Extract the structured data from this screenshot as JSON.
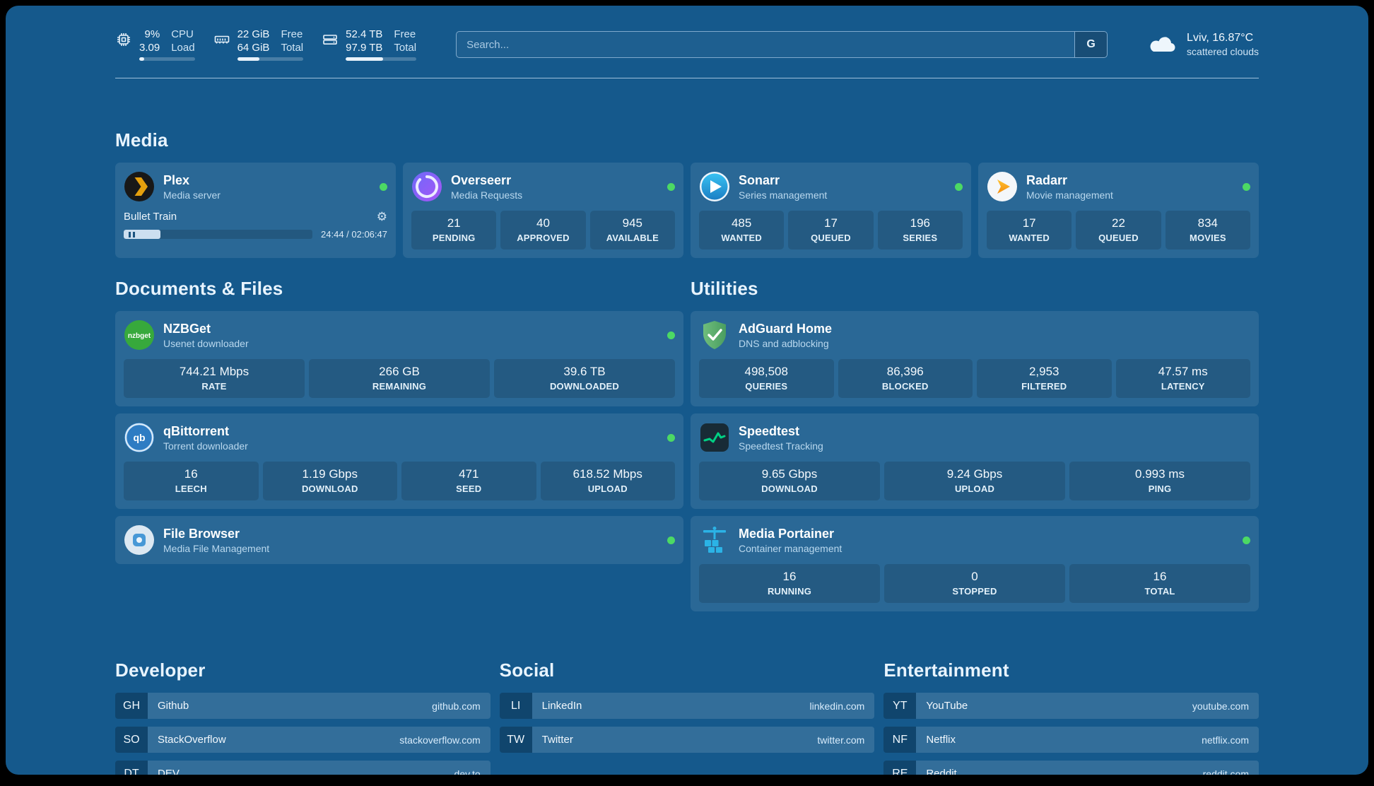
{
  "header": {
    "cpu": {
      "value_top": "9%",
      "label_top": "CPU",
      "value_bottom": "3.09",
      "label_bottom": "Load",
      "bar_percent": 9
    },
    "memory": {
      "value_top": "22 GiB",
      "label_top": "Free",
      "value_bottom": "64 GiB",
      "label_bottom": "Total",
      "bar_percent": 34
    },
    "storage": {
      "value_top": "52.4 TB",
      "label_top": "Free",
      "value_bottom": "97.9 TB",
      "label_bottom": "Total",
      "bar_percent": 53
    },
    "search": {
      "placeholder": "Search...",
      "button": "G"
    },
    "weather": {
      "location": "Lviv, 16.87°C",
      "condition": "scattered clouds"
    }
  },
  "media": {
    "title": "Media",
    "plex": {
      "name": "Plex",
      "subtitle": "Media server",
      "now_playing": "Bullet Train",
      "time": "24:44 / 02:06:47",
      "progress_percent": 19.5
    },
    "overseerr": {
      "name": "Overseerr",
      "subtitle": "Media Requests",
      "stats": [
        {
          "value": "21",
          "label": "PENDING"
        },
        {
          "value": "40",
          "label": "APPROVED"
        },
        {
          "value": "945",
          "label": "AVAILABLE"
        }
      ]
    },
    "sonarr": {
      "name": "Sonarr",
      "subtitle": "Series management",
      "stats": [
        {
          "value": "485",
          "label": "WANTED"
        },
        {
          "value": "17",
          "label": "QUEUED"
        },
        {
          "value": "196",
          "label": "SERIES"
        }
      ]
    },
    "radarr": {
      "name": "Radarr",
      "subtitle": "Movie management",
      "stats": [
        {
          "value": "17",
          "label": "WANTED"
        },
        {
          "value": "22",
          "label": "QUEUED"
        },
        {
          "value": "834",
          "label": "MOVIES"
        }
      ]
    }
  },
  "documents": {
    "title": "Documents & Files",
    "nzbget": {
      "name": "NZBGet",
      "subtitle": "Usenet downloader",
      "icon_text": "nzbget",
      "stats": [
        {
          "value": "744.21 Mbps",
          "label": "RATE"
        },
        {
          "value": "266 GB",
          "label": "REMAINING"
        },
        {
          "value": "39.6 TB",
          "label": "DOWNLOADED"
        }
      ]
    },
    "qbittorrent": {
      "name": "qBittorrent",
      "subtitle": "Torrent downloader",
      "icon_text": "qb",
      "stats": [
        {
          "value": "16",
          "label": "LEECH"
        },
        {
          "value": "1.19 Gbps",
          "label": "DOWNLOAD"
        },
        {
          "value": "471",
          "label": "SEED"
        },
        {
          "value": "618.52 Mbps",
          "label": "UPLOAD"
        }
      ]
    },
    "filebrowser": {
      "name": "File Browser",
      "subtitle": "Media File Management"
    }
  },
  "utilities": {
    "title": "Utilities",
    "adguard": {
      "name": "AdGuard Home",
      "subtitle": "DNS and adblocking",
      "stats": [
        {
          "value": "498,508",
          "label": "QUERIES"
        },
        {
          "value": "86,396",
          "label": "BLOCKED"
        },
        {
          "value": "2,953",
          "label": "FILTERED"
        },
        {
          "value": "47.57 ms",
          "label": "LATENCY"
        }
      ]
    },
    "speedtest": {
      "name": "Speedtest",
      "subtitle": "Speedtest Tracking",
      "stats": [
        {
          "value": "9.65 Gbps",
          "label": "DOWNLOAD"
        },
        {
          "value": "9.24 Gbps",
          "label": "UPLOAD"
        },
        {
          "value": "0.993 ms",
          "label": "PING"
        }
      ]
    },
    "portainer": {
      "name": "Media Portainer",
      "subtitle": "Container management",
      "stats": [
        {
          "value": "16",
          "label": "RUNNING"
        },
        {
          "value": "0",
          "label": "STOPPED"
        },
        {
          "value": "16",
          "label": "TOTAL"
        }
      ]
    }
  },
  "bookmarks": {
    "developer": {
      "title": "Developer",
      "items": [
        {
          "abbr": "GH",
          "name": "Github",
          "url": "github.com"
        },
        {
          "abbr": "SO",
          "name": "StackOverflow",
          "url": "stackoverflow.com"
        },
        {
          "abbr": "DT",
          "name": "DEV",
          "url": "dev.to"
        }
      ]
    },
    "social": {
      "title": "Social",
      "items": [
        {
          "abbr": "LI",
          "name": "LinkedIn",
          "url": "linkedin.com"
        },
        {
          "abbr": "TW",
          "name": "Twitter",
          "url": "twitter.com"
        }
      ]
    },
    "entertainment": {
      "title": "Entertainment",
      "items": [
        {
          "abbr": "YT",
          "name": "YouTube",
          "url": "youtube.com"
        },
        {
          "abbr": "NF",
          "name": "Netflix",
          "url": "netflix.com"
        },
        {
          "abbr": "RE",
          "name": "Reddit",
          "url": "reddit.com"
        }
      ]
    }
  }
}
